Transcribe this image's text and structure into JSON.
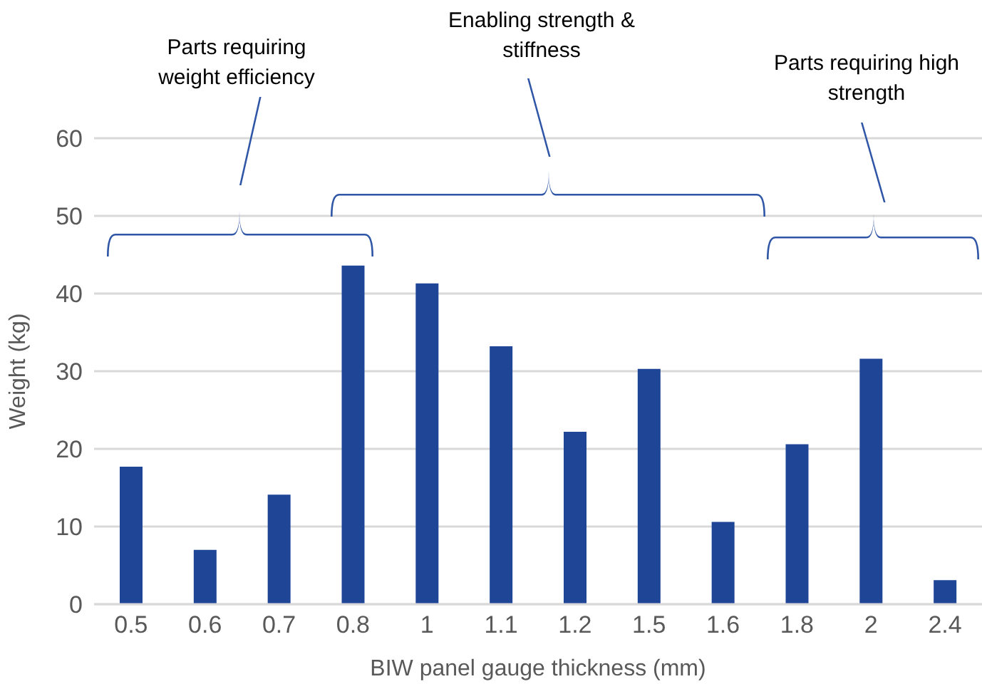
{
  "chart_data": {
    "type": "bar",
    "xlabel": "BIW panel gauge thickness (mm)",
    "ylabel": "Weight (kg)",
    "categories": [
      "0.5",
      "0.6",
      "0.7",
      "0.8",
      "1",
      "1.1",
      "1.2",
      "1.5",
      "1.6",
      "1.8",
      "2",
      "2.4"
    ],
    "values": [
      17.7,
      7.0,
      14.1,
      43.6,
      41.3,
      33.2,
      22.2,
      30.3,
      10.6,
      20.6,
      31.6,
      3.1
    ],
    "color": "#1f4597",
    "ylim": [
      0,
      60
    ],
    "yticks": [
      0,
      10,
      20,
      30,
      40,
      50,
      60
    ],
    "grid": "y",
    "annotations": [
      "Parts requiring weight efficiency",
      "Enabling strength & stiffness",
      "Parts requiring high strength"
    ]
  }
}
